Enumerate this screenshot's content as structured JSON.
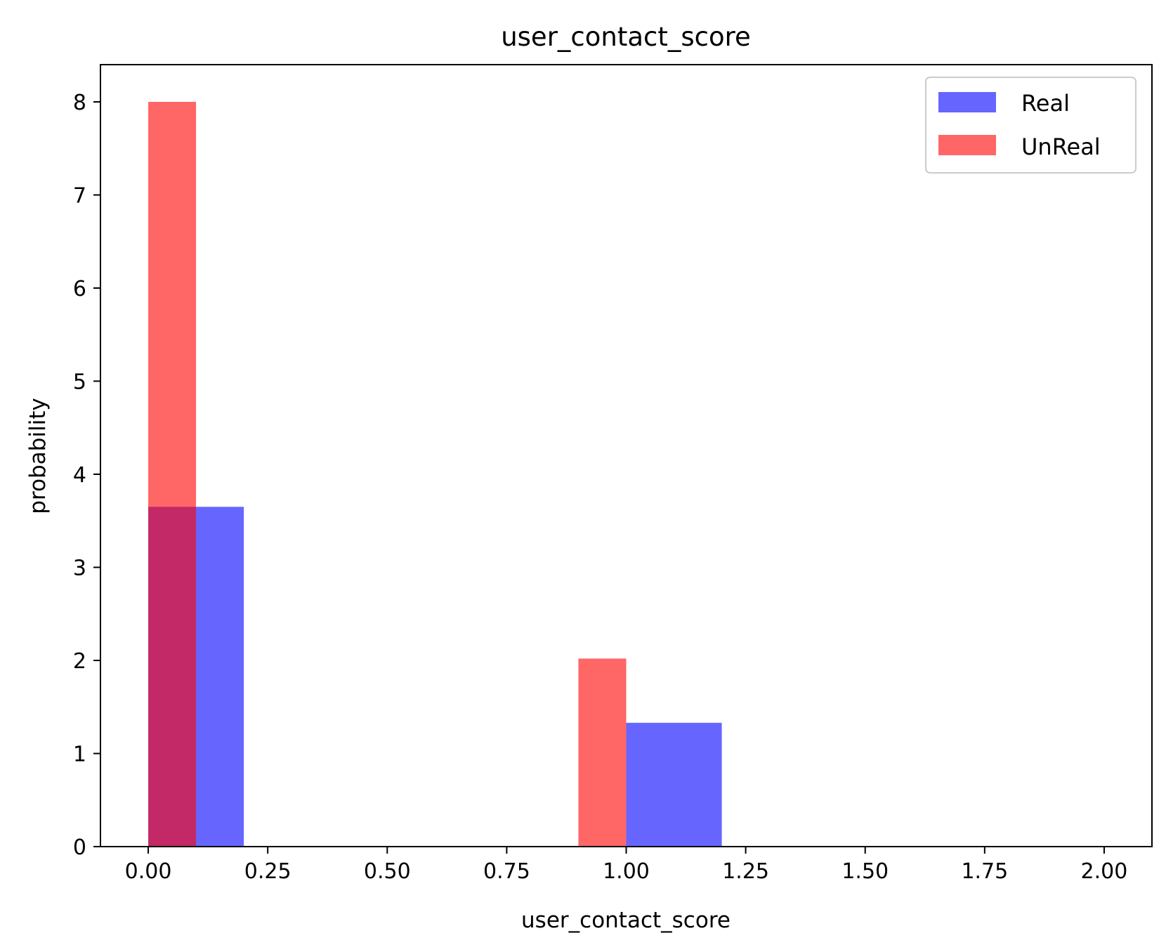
{
  "chart_data": {
    "type": "bar",
    "title": "user_contact_score",
    "xlabel": "user_contact_score",
    "ylabel": "probability",
    "xlim": [
      -0.1,
      2.1
    ],
    "ylim": [
      0,
      8.4
    ],
    "xticks": [
      "0.00",
      "0.25",
      "0.50",
      "0.75",
      "1.00",
      "1.25",
      "1.50",
      "1.75",
      "2.00"
    ],
    "yticks": [
      "0",
      "1",
      "2",
      "3",
      "4",
      "5",
      "6",
      "7",
      "8"
    ],
    "legend_position": "top-right",
    "grid": false,
    "series": [
      {
        "name": "Real",
        "color": "#0000ff",
        "opacity": 0.6,
        "bins": [
          {
            "x0": 0.0,
            "x1": 0.2,
            "value": 3.65
          },
          {
            "x0": 1.0,
            "x1": 1.2,
            "value": 1.33
          }
        ]
      },
      {
        "name": "UnReal",
        "color": "#ff0000",
        "opacity": 0.6,
        "bins": [
          {
            "x0": 0.0,
            "x1": 0.1,
            "value": 8.0
          },
          {
            "x0": 0.9,
            "x1": 1.0,
            "value": 2.02
          }
        ]
      }
    ]
  }
}
